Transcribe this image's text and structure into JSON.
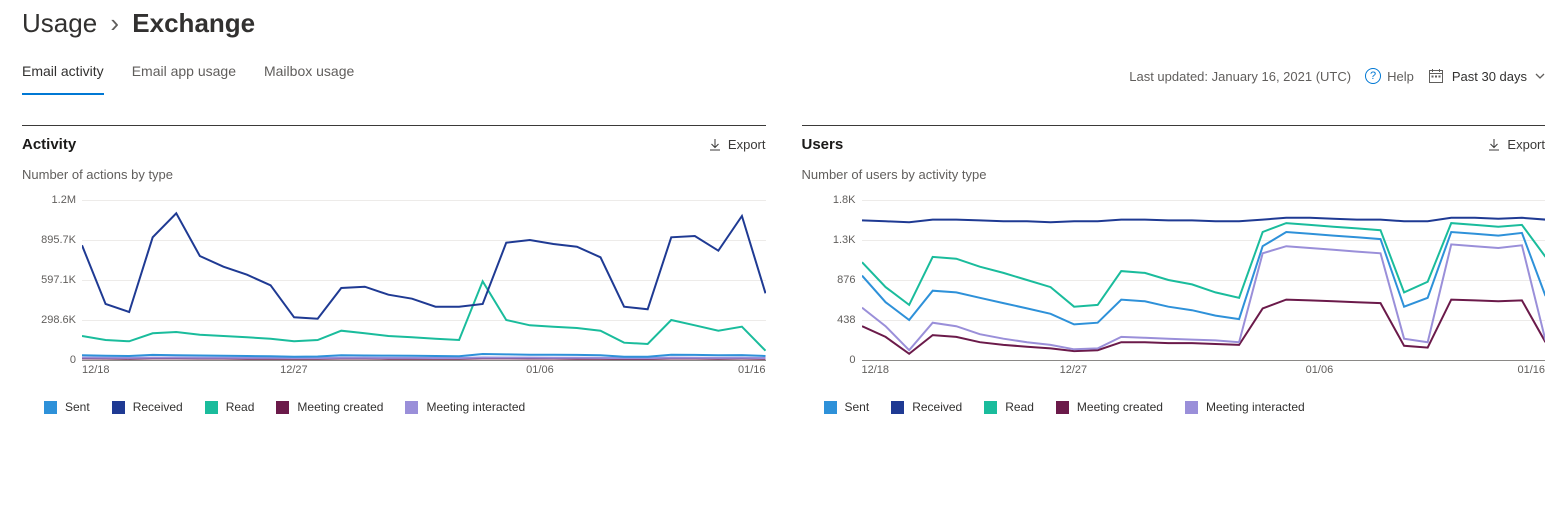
{
  "breadcrumb": {
    "parent": "Usage",
    "separator": "›",
    "current": "Exchange"
  },
  "tabs": [
    {
      "id": "email-activity",
      "label": "Email activity",
      "active": true
    },
    {
      "id": "email-app-usage",
      "label": "Email app usage",
      "active": false
    },
    {
      "id": "mailbox-usage",
      "label": "Mailbox usage",
      "active": false
    }
  ],
  "header": {
    "last_updated": "Last updated: January 16, 2021 (UTC)",
    "help_label": "Help",
    "date_range_label": "Past 30 days"
  },
  "colors": {
    "sent": "#2e91d9",
    "received": "#1f3a93",
    "read": "#1abc9c",
    "meeting_created": "#6b1a4a",
    "meeting_interacted": "#9a8fd9",
    "grid": "#edebe9",
    "baseline": "#8a8886",
    "text_muted": "#605e5c"
  },
  "legend_labels": {
    "sent": "Sent",
    "received": "Received",
    "read": "Read",
    "meeting_created": "Meeting created",
    "meeting_interacted": "Meeting interacted"
  },
  "activity_chart": {
    "title": "Activity",
    "subtitle": "Number of actions by type",
    "export_label": "Export",
    "type": "line",
    "line_width": 2,
    "background_color": "#ffffff",
    "x_labels": [
      "12/18",
      "12/27",
      "01/06",
      "01/16"
    ],
    "x_positions_pct": [
      0,
      31,
      67,
      100
    ],
    "y_ticks": [
      "0",
      "298.6K",
      "597.1K",
      "895.7K",
      "1.2M"
    ],
    "ymax": 1200000,
    "n_points": 30,
    "series": {
      "received": [
        860000,
        420000,
        360000,
        920000,
        1100000,
        780000,
        700000,
        640000,
        560000,
        320000,
        310000,
        540000,
        550000,
        490000,
        460000,
        400000,
        400000,
        420000,
        880000,
        900000,
        870000,
        850000,
        770000,
        400000,
        380000,
        920000,
        930000,
        820000,
        1080000,
        500000
      ],
      "read": [
        180000,
        150000,
        140000,
        200000,
        210000,
        190000,
        180000,
        170000,
        160000,
        140000,
        150000,
        220000,
        200000,
        180000,
        170000,
        160000,
        150000,
        590000,
        300000,
        260000,
        250000,
        240000,
        220000,
        130000,
        120000,
        300000,
        260000,
        220000,
        250000,
        70000
      ],
      "sent": [
        35000,
        32000,
        30000,
        38000,
        36000,
        34000,
        32000,
        30000,
        28000,
        25000,
        26000,
        35000,
        34000,
        33000,
        32000,
        30000,
        28000,
        45000,
        42000,
        40000,
        39000,
        38000,
        36000,
        25000,
        24000,
        40000,
        38000,
        35000,
        37000,
        30000
      ],
      "meeting_created": [
        12000,
        11000,
        10000,
        12000,
        12000,
        11000,
        11000,
        10000,
        10000,
        9000,
        9000,
        11000,
        11000,
        10000,
        10000,
        9000,
        9000,
        12000,
        12000,
        11000,
        11000,
        10000,
        10000,
        8000,
        8000,
        11000,
        11000,
        10000,
        11000,
        9000
      ],
      "meeting_interacted": [
        18000,
        17000,
        16000,
        18000,
        18000,
        17000,
        17000,
        16000,
        16000,
        15000,
        15000,
        17000,
        17000,
        16000,
        16000,
        15000,
        15000,
        19000,
        18000,
        18000,
        17000,
        17000,
        16000,
        14000,
        14000,
        18000,
        17000,
        16000,
        17000,
        15000
      ]
    }
  },
  "users_chart": {
    "title": "Users",
    "subtitle": "Number of users by activity type",
    "export_label": "Export",
    "type": "line",
    "line_width": 2,
    "background_color": "#ffffff",
    "x_labels": [
      "12/18",
      "12/27",
      "01/06",
      "01/16"
    ],
    "x_positions_pct": [
      0,
      31,
      67,
      100
    ],
    "y_ticks": [
      "0",
      "438",
      "876",
      "1.3K",
      "1.8K"
    ],
    "ymax": 1800,
    "n_points": 30,
    "series": {
      "received": [
        1570,
        1560,
        1550,
        1580,
        1580,
        1570,
        1560,
        1560,
        1550,
        1560,
        1560,
        1580,
        1580,
        1570,
        1570,
        1560,
        1560,
        1580,
        1600,
        1600,
        1590,
        1580,
        1580,
        1560,
        1560,
        1600,
        1600,
        1590,
        1600,
        1580
      ],
      "read": [
        1100,
        820,
        620,
        1160,
        1140,
        1050,
        980,
        900,
        820,
        600,
        620,
        1000,
        980,
        900,
        850,
        760,
        700,
        1440,
        1540,
        1520,
        1500,
        1480,
        1460,
        760,
        880,
        1540,
        1520,
        1500,
        1520,
        1160
      ],
      "sent": [
        950,
        650,
        450,
        780,
        760,
        700,
        640,
        580,
        520,
        400,
        420,
        680,
        660,
        600,
        560,
        500,
        460,
        1280,
        1440,
        1420,
        1400,
        1380,
        1360,
        600,
        700,
        1440,
        1420,
        1400,
        1430,
        720
      ],
      "meeting_interacted": [
        590,
        380,
        110,
        420,
        380,
        290,
        240,
        200,
        170,
        120,
        130,
        260,
        250,
        240,
        230,
        220,
        200,
        1200,
        1280,
        1260,
        1240,
        1220,
        1200,
        240,
        200,
        1300,
        1280,
        1260,
        1290,
        220
      ],
      "meeting_created": [
        380,
        260,
        70,
        280,
        260,
        200,
        170,
        150,
        130,
        100,
        110,
        200,
        200,
        190,
        190,
        180,
        170,
        580,
        680,
        670,
        660,
        650,
        640,
        160,
        140,
        680,
        670,
        660,
        670,
        200
      ]
    }
  }
}
